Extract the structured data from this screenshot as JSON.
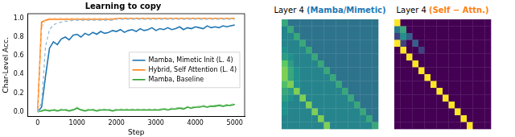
{
  "chart_data": [
    {
      "type": "line",
      "title": "Learning to copy",
      "x_label": "Step",
      "y_label": "Char-Level Acc.",
      "x": [
        0,
        100,
        200,
        300,
        400,
        500,
        600,
        700,
        800,
        900,
        1000,
        1100,
        1200,
        1300,
        1400,
        1500,
        1600,
        1700,
        1800,
        1900,
        2000,
        2100,
        2200,
        2300,
        2400,
        2500,
        2600,
        2700,
        2800,
        2900,
        3000,
        3100,
        3200,
        3300,
        3400,
        3500,
        3600,
        3700,
        3800,
        3900,
        4000,
        4100,
        4200,
        4300,
        4400,
        4500,
        4600,
        4700,
        4800,
        4900,
        5000
      ],
      "xlim": [
        -250,
        5250
      ],
      "xticks": [
        0,
        1000,
        2000,
        3000,
        4000,
        5000
      ],
      "ylim": [
        -0.05,
        1.05
      ],
      "yticks": [
        {
          "value": 0,
          "label": "0.0"
        },
        {
          "value": 0.2,
          "label": "0.2"
        },
        {
          "value": 0.4,
          "label": "0.4"
        },
        {
          "value": 0.6,
          "label": "0.6"
        },
        {
          "value": 0.8,
          "label": "0.8"
        },
        {
          "value": 1,
          "label": "1.0"
        }
      ],
      "grid": false,
      "legend": "right",
      "series": [
        {
          "name": "Mamba, Mimetic Init (L. 4)",
          "color": "#8fbbd9",
          "line_style": "dashed",
          "values": [
            0,
            0.1,
            0.7,
            0.88,
            0.93,
            0.95,
            0.96,
            0.97,
            0.97,
            0.98,
            0.98,
            0.98,
            0.98,
            0.98,
            0.98,
            0.98,
            0.98,
            0.98,
            0.98,
            0.98,
            0.99,
            0.99,
            0.99,
            0.99,
            0.99,
            0.99,
            0.99,
            0.99,
            0.99,
            0.99,
            0.99,
            0.99,
            0.99,
            0.99,
            0.99,
            0.99,
            0.99,
            0.99,
            0.99,
            0.99,
            0.99,
            0.99,
            0.99,
            0.99,
            0.99,
            0.99,
            0.99,
            0.99,
            0.99,
            0.99,
            0.99
          ]
        },
        {
          "name": "Hybrid, Self Attention (L. 4)",
          "color": "#ffbf86",
          "line_style": "dashed",
          "values": [
            0,
            0.9,
            0.99,
            1,
            1,
            1,
            1,
            1,
            1,
            1,
            1,
            1,
            1,
            1,
            1,
            1,
            1,
            1,
            1,
            1,
            1,
            1,
            1,
            1,
            1,
            1,
            1,
            1,
            1,
            1,
            1,
            1,
            1,
            1,
            1,
            1,
            1,
            1,
            1,
            1,
            1,
            1,
            1,
            1,
            1,
            1,
            1,
            1,
            1,
            1,
            1
          ]
        },
        {
          "name": "Mamba, Baseline",
          "color": "#98d698",
          "line_style": "dashed",
          "values": [
            0,
            0.02,
            0.03,
            0.02,
            0.03,
            0.02,
            0.03,
            0.03,
            0.02,
            0.03,
            0.05,
            0.03,
            0.02,
            0.03,
            0.03,
            0.02,
            0.03,
            0.03,
            0.03,
            0.02,
            0.03,
            0.03,
            0.03,
            0.03,
            0.03,
            0.03,
            0.03,
            0.03,
            0.03,
            0.03,
            0.03,
            0.03,
            0.04,
            0.03,
            0.04,
            0.04,
            0.05,
            0.04,
            0.06,
            0.05,
            0.06,
            0.06,
            0.07,
            0.06,
            0.07,
            0.07,
            0.08,
            0.07,
            0.08,
            0.08,
            0.09
          ]
        },
        {
          "name": "Mamba, Mimetic Init (L. 4)",
          "color": "#1f77b4",
          "line_style": "solid",
          "values": [
            0,
            0.05,
            0.38,
            0.68,
            0.75,
            0.72,
            0.78,
            0.8,
            0.77,
            0.82,
            0.83,
            0.8,
            0.84,
            0.82,
            0.85,
            0.83,
            0.86,
            0.84,
            0.85,
            0.87,
            0.86,
            0.88,
            0.85,
            0.87,
            0.88,
            0.86,
            0.89,
            0.87,
            0.88,
            0.9,
            0.87,
            0.89,
            0.88,
            0.9,
            0.88,
            0.89,
            0.91,
            0.88,
            0.9,
            0.89,
            0.91,
            0.9,
            0.89,
            0.92,
            0.9,
            0.91,
            0.9,
            0.92,
            0.91,
            0.92,
            0.93
          ]
        },
        {
          "name": "Hybrid, Self Attention (L. 4)",
          "color": "#ff7f0e",
          "line_style": "solid",
          "values": [
            0,
            0.96,
            0.98,
            0.99,
            0.99,
            0.99,
            0.99,
            0.99,
            0.99,
            0.99,
            0.99,
            0.99,
            0.99,
            0.99,
            0.99,
            0.99,
            0.99,
            0.99,
            0.99,
            0.99,
            1,
            1,
            1,
            1,
            1,
            1,
            1,
            1,
            1,
            1,
            1,
            1,
            1,
            1,
            1,
            1,
            1,
            1,
            1,
            1,
            1,
            1,
            1,
            1,
            1,
            1,
            1,
            1,
            1,
            1,
            1
          ]
        },
        {
          "name": "Mamba, Baseline",
          "color": "#2ca02c",
          "line_style": "solid",
          "values": [
            0,
            0.01,
            0.02,
            0.01,
            0.02,
            0.01,
            0.02,
            0.02,
            0.01,
            0.02,
            0.04,
            0.02,
            0.01,
            0.02,
            0.02,
            0.01,
            0.02,
            0.02,
            0.02,
            0.01,
            0.02,
            0.02,
            0.02,
            0.02,
            0.02,
            0.02,
            0.02,
            0.02,
            0.02,
            0.02,
            0.02,
            0.02,
            0.03,
            0.02,
            0.03,
            0.03,
            0.04,
            0.03,
            0.05,
            0.04,
            0.05,
            0.05,
            0.06,
            0.05,
            0.06,
            0.06,
            0.07,
            0.06,
            0.07,
            0.07,
            0.08
          ]
        }
      ]
    },
    {
      "type": "heatmap",
      "title": "Layer 4 (Mamba/Mimetic)",
      "color": "#1f77b4",
      "tick_labels": false,
      "zlim": [
        0,
        1
      ],
      "cells": [
        [
          0.6,
          0.38,
          0.38,
          0.38,
          0.38,
          0.38,
          0.38,
          0.38,
          0.38,
          0.38,
          0.38,
          0.38,
          0.38,
          0.38,
          0.38,
          0.38
        ],
        [
          0.45,
          0.6,
          0.38,
          0.38,
          0.38,
          0.38,
          0.38,
          0.38,
          0.38,
          0.38,
          0.38,
          0.38,
          0.38,
          0.38,
          0.38,
          0.38
        ],
        [
          0.45,
          0.45,
          0.6,
          0.38,
          0.38,
          0.38,
          0.38,
          0.38,
          0.38,
          0.38,
          0.38,
          0.38,
          0.38,
          0.38,
          0.38,
          0.38
        ],
        [
          0.45,
          0.45,
          0.45,
          0.6,
          0.38,
          0.38,
          0.38,
          0.38,
          0.38,
          0.38,
          0.38,
          0.38,
          0.38,
          0.38,
          0.38,
          0.38
        ],
        [
          0.5,
          0.45,
          0.45,
          0.45,
          0.6,
          0.38,
          0.38,
          0.38,
          0.38,
          0.38,
          0.38,
          0.38,
          0.38,
          0.38,
          0.38,
          0.38
        ],
        [
          0.55,
          0.5,
          0.45,
          0.45,
          0.45,
          0.6,
          0.38,
          0.38,
          0.38,
          0.38,
          0.38,
          0.38,
          0.38,
          0.38,
          0.38,
          0.38
        ],
        [
          0.75,
          0.55,
          0.45,
          0.45,
          0.45,
          0.45,
          0.6,
          0.38,
          0.38,
          0.38,
          0.38,
          0.38,
          0.38,
          0.38,
          0.38,
          0.38
        ],
        [
          0.8,
          0.6,
          0.5,
          0.45,
          0.45,
          0.45,
          0.45,
          0.6,
          0.38,
          0.38,
          0.38,
          0.38,
          0.38,
          0.38,
          0.38,
          0.38
        ],
        [
          0.8,
          0.6,
          0.5,
          0.45,
          0.45,
          0.45,
          0.45,
          0.45,
          0.6,
          0.38,
          0.38,
          0.38,
          0.38,
          0.38,
          0.38,
          0.38
        ],
        [
          0.7,
          0.8,
          0.5,
          0.45,
          0.45,
          0.45,
          0.45,
          0.45,
          0.45,
          0.6,
          0.38,
          0.38,
          0.38,
          0.38,
          0.38,
          0.38
        ],
        [
          0.6,
          0.55,
          0.8,
          0.45,
          0.45,
          0.45,
          0.45,
          0.45,
          0.45,
          0.45,
          0.6,
          0.38,
          0.38,
          0.38,
          0.38,
          0.38
        ],
        [
          0.55,
          0.5,
          0.45,
          0.8,
          0.45,
          0.45,
          0.45,
          0.45,
          0.45,
          0.45,
          0.45,
          0.6,
          0.38,
          0.38,
          0.38,
          0.38
        ],
        [
          0.5,
          0.45,
          0.45,
          0.45,
          0.8,
          0.45,
          0.45,
          0.45,
          0.45,
          0.45,
          0.45,
          0.45,
          0.6,
          0.38,
          0.38,
          0.38
        ],
        [
          0.5,
          0.45,
          0.45,
          0.45,
          0.45,
          0.8,
          0.45,
          0.45,
          0.45,
          0.45,
          0.45,
          0.45,
          0.45,
          0.6,
          0.38,
          0.38
        ],
        [
          0.45,
          0.45,
          0.45,
          0.45,
          0.45,
          0.45,
          0.8,
          0.45,
          0.45,
          0.45,
          0.45,
          0.45,
          0.45,
          0.45,
          0.6,
          0.38
        ],
        [
          0.45,
          0.45,
          0.45,
          0.45,
          0.45,
          0.45,
          0.45,
          0.8,
          0.45,
          0.45,
          0.45,
          0.45,
          0.45,
          0.45,
          0.45,
          0.6
        ]
      ]
    },
    {
      "type": "heatmap",
      "title": "Layer 4 (Self − Attn.)",
      "color": "#ff7f0e",
      "tick_labels": false,
      "zlim": [
        0,
        1
      ],
      "cells": [
        [
          1,
          0,
          0,
          0,
          0,
          0,
          0,
          0,
          0,
          0,
          0,
          0,
          0,
          0,
          0,
          0
        ],
        [
          0.4,
          0.6,
          0,
          0,
          0,
          0,
          0,
          0,
          0,
          0,
          0,
          0,
          0,
          0,
          0,
          0
        ],
        [
          0.2,
          0.5,
          0.3,
          0,
          0,
          0,
          0,
          0,
          0,
          0,
          0,
          0,
          0,
          0,
          0,
          0
        ],
        [
          1,
          0.2,
          0,
          0.3,
          0,
          0,
          0,
          0,
          0,
          0,
          0,
          0,
          0,
          0,
          0,
          0
        ],
        [
          0,
          1,
          0,
          0,
          0.2,
          0,
          0,
          0,
          0,
          0,
          0,
          0,
          0,
          0,
          0,
          0
        ],
        [
          0,
          0,
          1,
          0,
          0,
          0,
          0,
          0,
          0,
          0,
          0,
          0,
          0,
          0,
          0,
          0
        ],
        [
          0,
          0,
          0,
          1,
          0,
          0,
          0,
          0,
          0,
          0,
          0,
          0,
          0,
          0,
          0,
          0
        ],
        [
          0,
          0,
          0,
          0,
          1,
          0,
          0,
          0,
          0,
          0,
          0,
          0,
          0,
          0,
          0,
          0
        ],
        [
          0,
          0,
          0,
          0,
          0,
          1,
          0,
          0,
          0,
          0,
          0,
          0,
          0,
          0,
          0,
          0
        ],
        [
          0,
          0,
          0,
          0,
          0,
          0,
          1,
          0,
          0,
          0,
          0,
          0,
          0,
          0,
          0,
          0
        ],
        [
          0,
          0,
          0,
          0,
          0,
          0,
          0,
          1,
          0,
          0,
          0,
          0,
          0,
          0,
          0,
          0
        ],
        [
          0,
          0,
          0,
          0,
          0,
          0,
          0,
          0,
          1,
          0,
          0,
          0,
          0,
          0,
          0,
          0
        ],
        [
          0,
          0,
          0,
          0,
          0,
          0,
          0,
          0,
          0,
          1,
          0,
          0,
          0,
          0,
          0,
          0
        ],
        [
          0,
          0,
          0,
          0,
          0,
          0,
          0,
          0,
          0,
          0,
          1,
          0,
          0,
          0,
          0,
          0
        ],
        [
          0,
          0,
          0,
          0,
          0,
          0,
          0,
          0,
          0,
          0,
          0,
          1,
          0,
          0,
          0,
          0
        ],
        [
          0,
          0,
          0,
          0,
          0,
          0,
          0,
          0,
          0,
          0,
          0,
          0,
          1,
          0,
          0,
          0
        ]
      ]
    }
  ]
}
